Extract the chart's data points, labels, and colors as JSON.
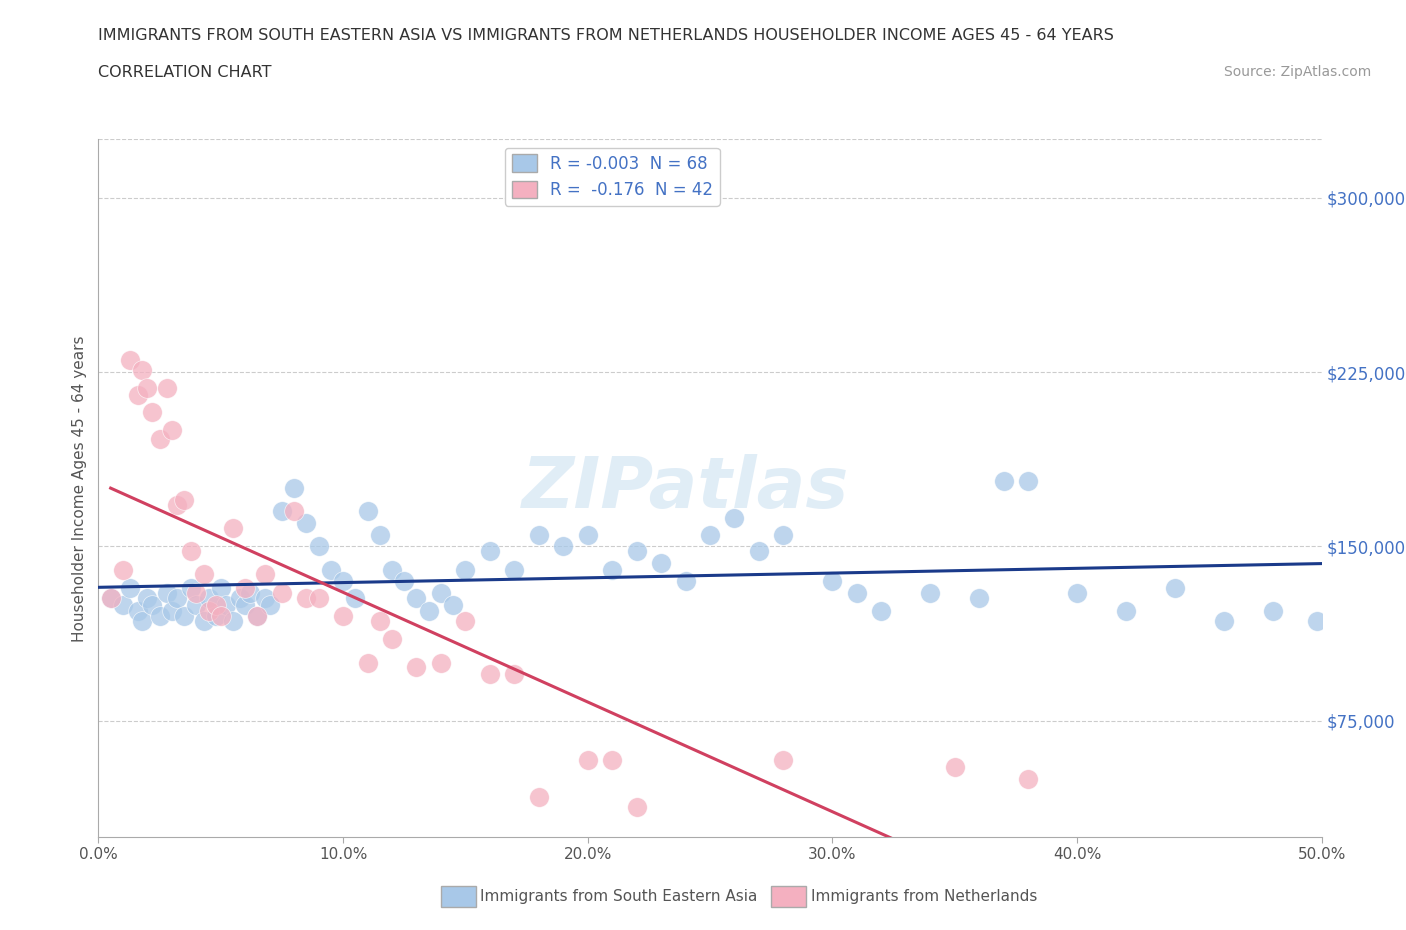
{
  "title_line1": "IMMIGRANTS FROM SOUTH EASTERN ASIA VS IMMIGRANTS FROM NETHERLANDS HOUSEHOLDER INCOME AGES 45 - 64 YEARS",
  "title_line2": "CORRELATION CHART",
  "source": "Source: ZipAtlas.com",
  "ylabel": "Householder Income Ages 45 - 64 years",
  "xlim": [
    0.0,
    0.5
  ],
  "ylim": [
    25000,
    325000
  ],
  "yticks": [
    75000,
    150000,
    225000,
    300000
  ],
  "ytick_labels": [
    "$75,000",
    "$150,000",
    "$225,000",
    "$300,000"
  ],
  "xticks": [
    0.0,
    0.1,
    0.2,
    0.3,
    0.4,
    0.5
  ],
  "xtick_labels": [
    "0.0%",
    "10.0%",
    "20.0%",
    "30.0%",
    "40.0%",
    "50.0%"
  ],
  "legend_r1": "R = -0.003  N = 68",
  "legend_r2": "R =  -0.176  N = 42",
  "color_blue": "#a8c8e8",
  "color_pink": "#f4b0c0",
  "color_blue_line": "#1a3a8a",
  "color_pink_line": "#d04060",
  "color_pink_dashed": "#e8a0b0",
  "background_color": "#ffffff",
  "grid_color": "#cccccc",
  "watermark": "ZIPatlas",
  "blue_scatter_x": [
    0.005,
    0.01,
    0.013,
    0.016,
    0.018,
    0.02,
    0.022,
    0.025,
    0.028,
    0.03,
    0.032,
    0.035,
    0.038,
    0.04,
    0.043,
    0.045,
    0.048,
    0.05,
    0.052,
    0.055,
    0.058,
    0.06,
    0.062,
    0.065,
    0.068,
    0.07,
    0.075,
    0.08,
    0.085,
    0.09,
    0.095,
    0.1,
    0.105,
    0.11,
    0.115,
    0.12,
    0.125,
    0.13,
    0.135,
    0.14,
    0.145,
    0.15,
    0.16,
    0.17,
    0.18,
    0.19,
    0.2,
    0.21,
    0.22,
    0.23,
    0.24,
    0.25,
    0.26,
    0.27,
    0.28,
    0.3,
    0.31,
    0.32,
    0.34,
    0.36,
    0.37,
    0.38,
    0.4,
    0.42,
    0.44,
    0.46,
    0.48,
    0.498
  ],
  "blue_scatter_y": [
    128000,
    125000,
    132000,
    122000,
    118000,
    128000,
    125000,
    120000,
    130000,
    122000,
    128000,
    120000,
    132000,
    125000,
    118000,
    128000,
    120000,
    132000,
    125000,
    118000,
    128000,
    125000,
    130000,
    120000,
    128000,
    125000,
    165000,
    175000,
    160000,
    150000,
    140000,
    135000,
    128000,
    165000,
    155000,
    140000,
    135000,
    128000,
    122000,
    130000,
    125000,
    140000,
    148000,
    140000,
    155000,
    150000,
    155000,
    140000,
    148000,
    143000,
    135000,
    155000,
    162000,
    148000,
    155000,
    135000,
    130000,
    122000,
    130000,
    128000,
    178000,
    178000,
    130000,
    122000,
    132000,
    118000,
    122000,
    118000
  ],
  "pink_scatter_x": [
    0.005,
    0.01,
    0.013,
    0.016,
    0.018,
    0.02,
    0.022,
    0.025,
    0.028,
    0.03,
    0.032,
    0.035,
    0.038,
    0.04,
    0.043,
    0.045,
    0.048,
    0.05,
    0.055,
    0.06,
    0.065,
    0.068,
    0.075,
    0.08,
    0.085,
    0.09,
    0.1,
    0.11,
    0.115,
    0.12,
    0.13,
    0.14,
    0.15,
    0.16,
    0.17,
    0.18,
    0.2,
    0.21,
    0.22,
    0.28,
    0.35,
    0.38
  ],
  "pink_scatter_y": [
    128000,
    140000,
    230000,
    215000,
    226000,
    218000,
    208000,
    196000,
    218000,
    200000,
    168000,
    170000,
    148000,
    130000,
    138000,
    122000,
    125000,
    120000,
    158000,
    132000,
    120000,
    138000,
    130000,
    165000,
    128000,
    128000,
    120000,
    100000,
    118000,
    110000,
    98000,
    100000,
    118000,
    95000,
    95000,
    42000,
    58000,
    58000,
    38000,
    58000,
    55000,
    50000
  ]
}
